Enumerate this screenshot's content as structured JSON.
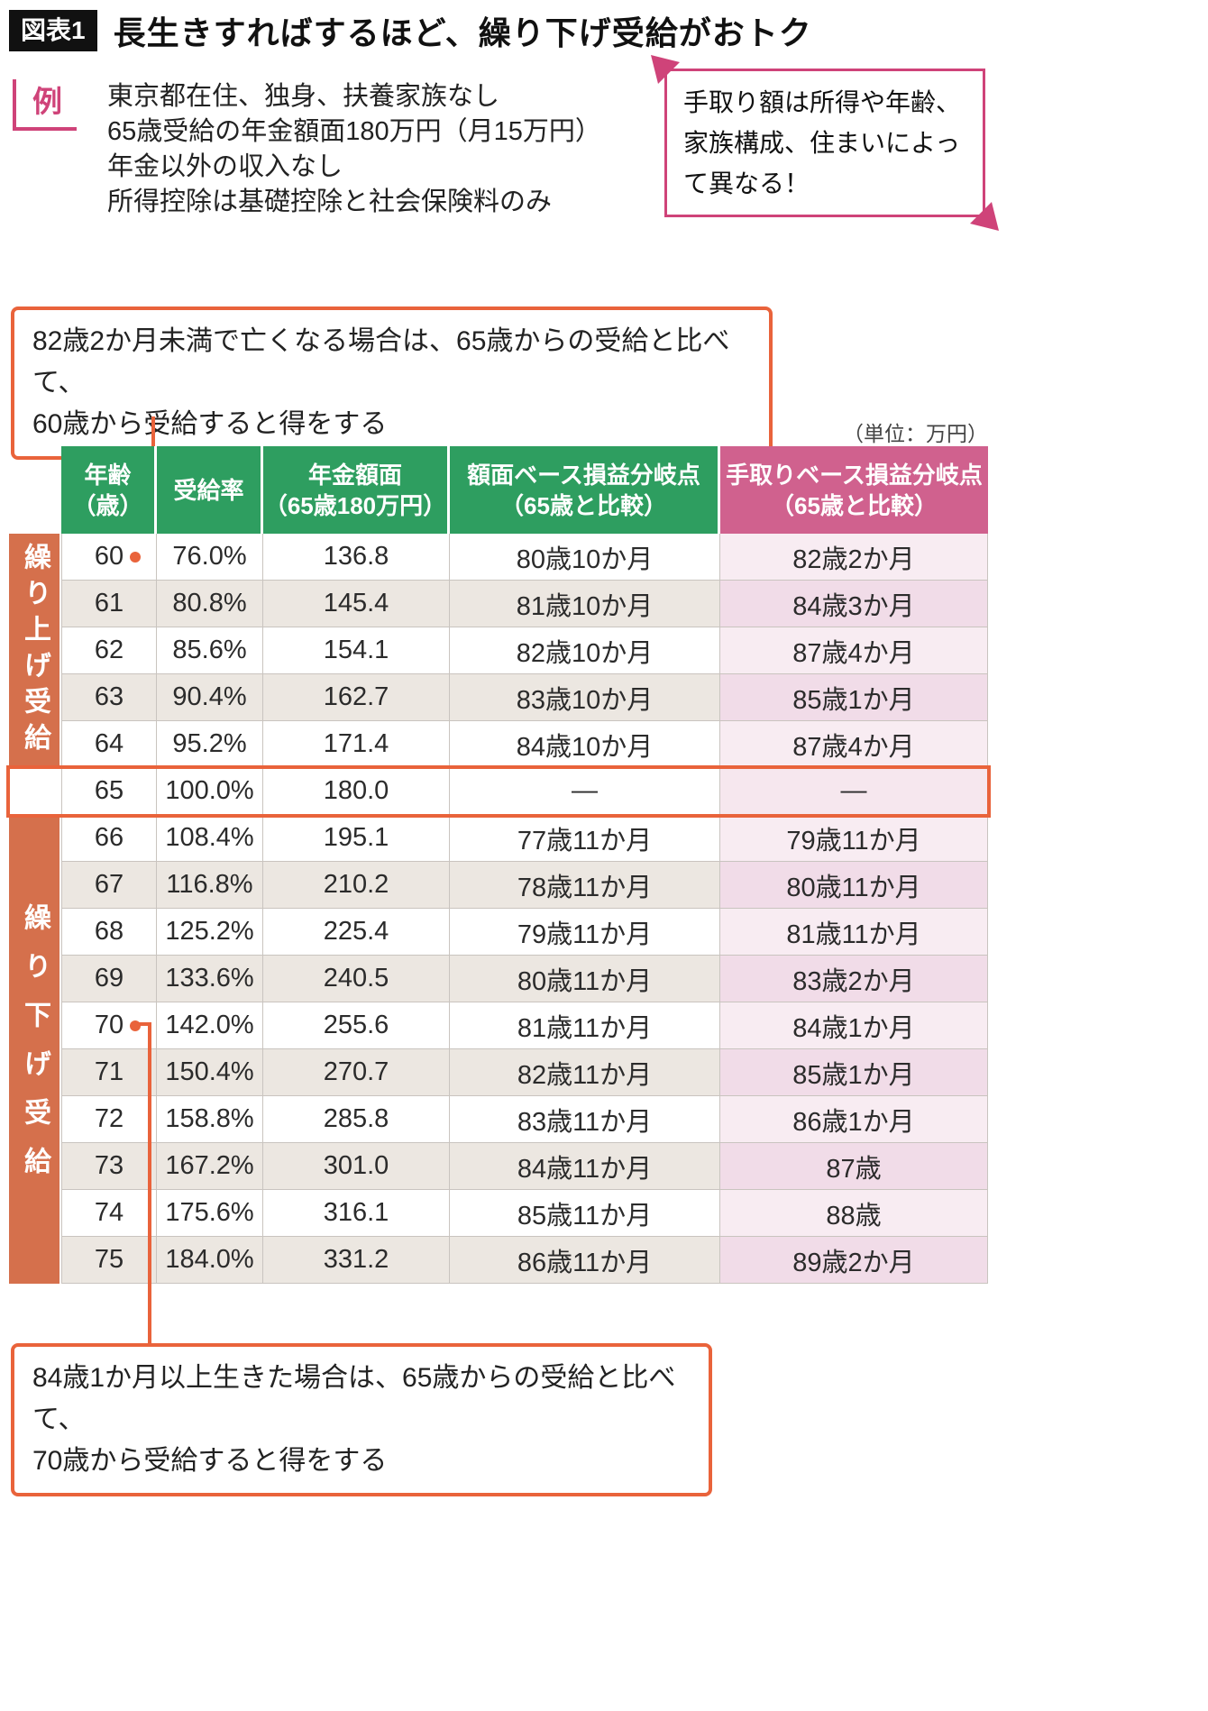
{
  "header": {
    "badge": "図表1",
    "title": "長生きすればするほど、繰り下げ受給がおトク"
  },
  "example": {
    "label": "例",
    "lines": [
      "東京都在住、独身、扶養家族なし",
      "65歳受給の年金額面180万円（月15万円）",
      "年金以外の収入なし",
      "所得控除は基礎控除と社会保険料のみ"
    ]
  },
  "note_callout": {
    "lines": [
      "手取り額は所得や年齢、",
      "家族構成、住まいによっ",
      "て異なる！"
    ]
  },
  "top_callout": {
    "lines": [
      "82歳2か月未満で亡くなる場合は、65歳からの受給と比べて、",
      "60歳から受給すると得をする"
    ]
  },
  "bottom_callout": {
    "lines": [
      "84歳1か月以上生きた場合は、65歳からの受給と比べて、",
      "70歳から受給すると得をする"
    ]
  },
  "unit_label": "（単位：万円）",
  "groups": {
    "early": "繰り上げ受給",
    "late": "繰り下げ受給"
  },
  "colors": {
    "green": "#2e9e60",
    "pink": "#d0618e",
    "orange": "#e9633b",
    "salmon": "#d5704c",
    "magenta": "#cf4379"
  },
  "chart_data": {
    "type": "table",
    "title": "長生きすればするほど、繰り下げ受給がおトク",
    "unit": "万円",
    "columns": [
      {
        "line1": "年齢",
        "line2": "（歳）"
      },
      {
        "line1": "受給率",
        "line2": ""
      },
      {
        "line1": "年金額面",
        "line2": "（65歳180万円）"
      },
      {
        "line1": "額面ベース損益分岐点",
        "line2": "（65歳と比較）"
      },
      {
        "line1": "手取りベース損益分岐点",
        "line2": "（65歳と比較）"
      }
    ],
    "rows": [
      {
        "age": "60",
        "rate": "76.0%",
        "amount": "136.8",
        "face": "80歳10か月",
        "net": "82歳2か月",
        "group": "early",
        "marker": true
      },
      {
        "age": "61",
        "rate": "80.8%",
        "amount": "145.4",
        "face": "81歳10か月",
        "net": "84歳3か月",
        "group": "early",
        "marker": false
      },
      {
        "age": "62",
        "rate": "85.6%",
        "amount": "154.1",
        "face": "82歳10か月",
        "net": "87歳4か月",
        "group": "early",
        "marker": false
      },
      {
        "age": "63",
        "rate": "90.4%",
        "amount": "162.7",
        "face": "83歳10か月",
        "net": "85歳1か月",
        "group": "early",
        "marker": false
      },
      {
        "age": "64",
        "rate": "95.2%",
        "amount": "171.4",
        "face": "84歳10か月",
        "net": "87歳4か月",
        "group": "early",
        "marker": false
      },
      {
        "age": "65",
        "rate": "100.0%",
        "amount": "180.0",
        "face": "―",
        "net": "―",
        "group": "base",
        "marker": false
      },
      {
        "age": "66",
        "rate": "108.4%",
        "amount": "195.1",
        "face": "77歳11か月",
        "net": "79歳11か月",
        "group": "late",
        "marker": false
      },
      {
        "age": "67",
        "rate": "116.8%",
        "amount": "210.2",
        "face": "78歳11か月",
        "net": "80歳11か月",
        "group": "late",
        "marker": false
      },
      {
        "age": "68",
        "rate": "125.2%",
        "amount": "225.4",
        "face": "79歳11か月",
        "net": "81歳11か月",
        "group": "late",
        "marker": false
      },
      {
        "age": "69",
        "rate": "133.6%",
        "amount": "240.5",
        "face": "80歳11か月",
        "net": "83歳2か月",
        "group": "late",
        "marker": false
      },
      {
        "age": "70",
        "rate": "142.0%",
        "amount": "255.6",
        "face": "81歳11か月",
        "net": "84歳1か月",
        "group": "late",
        "marker": true
      },
      {
        "age": "71",
        "rate": "150.4%",
        "amount": "270.7",
        "face": "82歳11か月",
        "net": "85歳1か月",
        "group": "late",
        "marker": false
      },
      {
        "age": "72",
        "rate": "158.8%",
        "amount": "285.8",
        "face": "83歳11か月",
        "net": "86歳1か月",
        "group": "late",
        "marker": false
      },
      {
        "age": "73",
        "rate": "167.2%",
        "amount": "301.0",
        "face": "84歳11か月",
        "net": "87歳",
        "group": "late",
        "marker": false
      },
      {
        "age": "74",
        "rate": "175.6%",
        "amount": "316.1",
        "face": "85歳11か月",
        "net": "88歳",
        "group": "late",
        "marker": false
      },
      {
        "age": "75",
        "rate": "184.0%",
        "amount": "331.2",
        "face": "86歳11か月",
        "net": "89歳2か月",
        "group": "late",
        "marker": false
      }
    ]
  }
}
